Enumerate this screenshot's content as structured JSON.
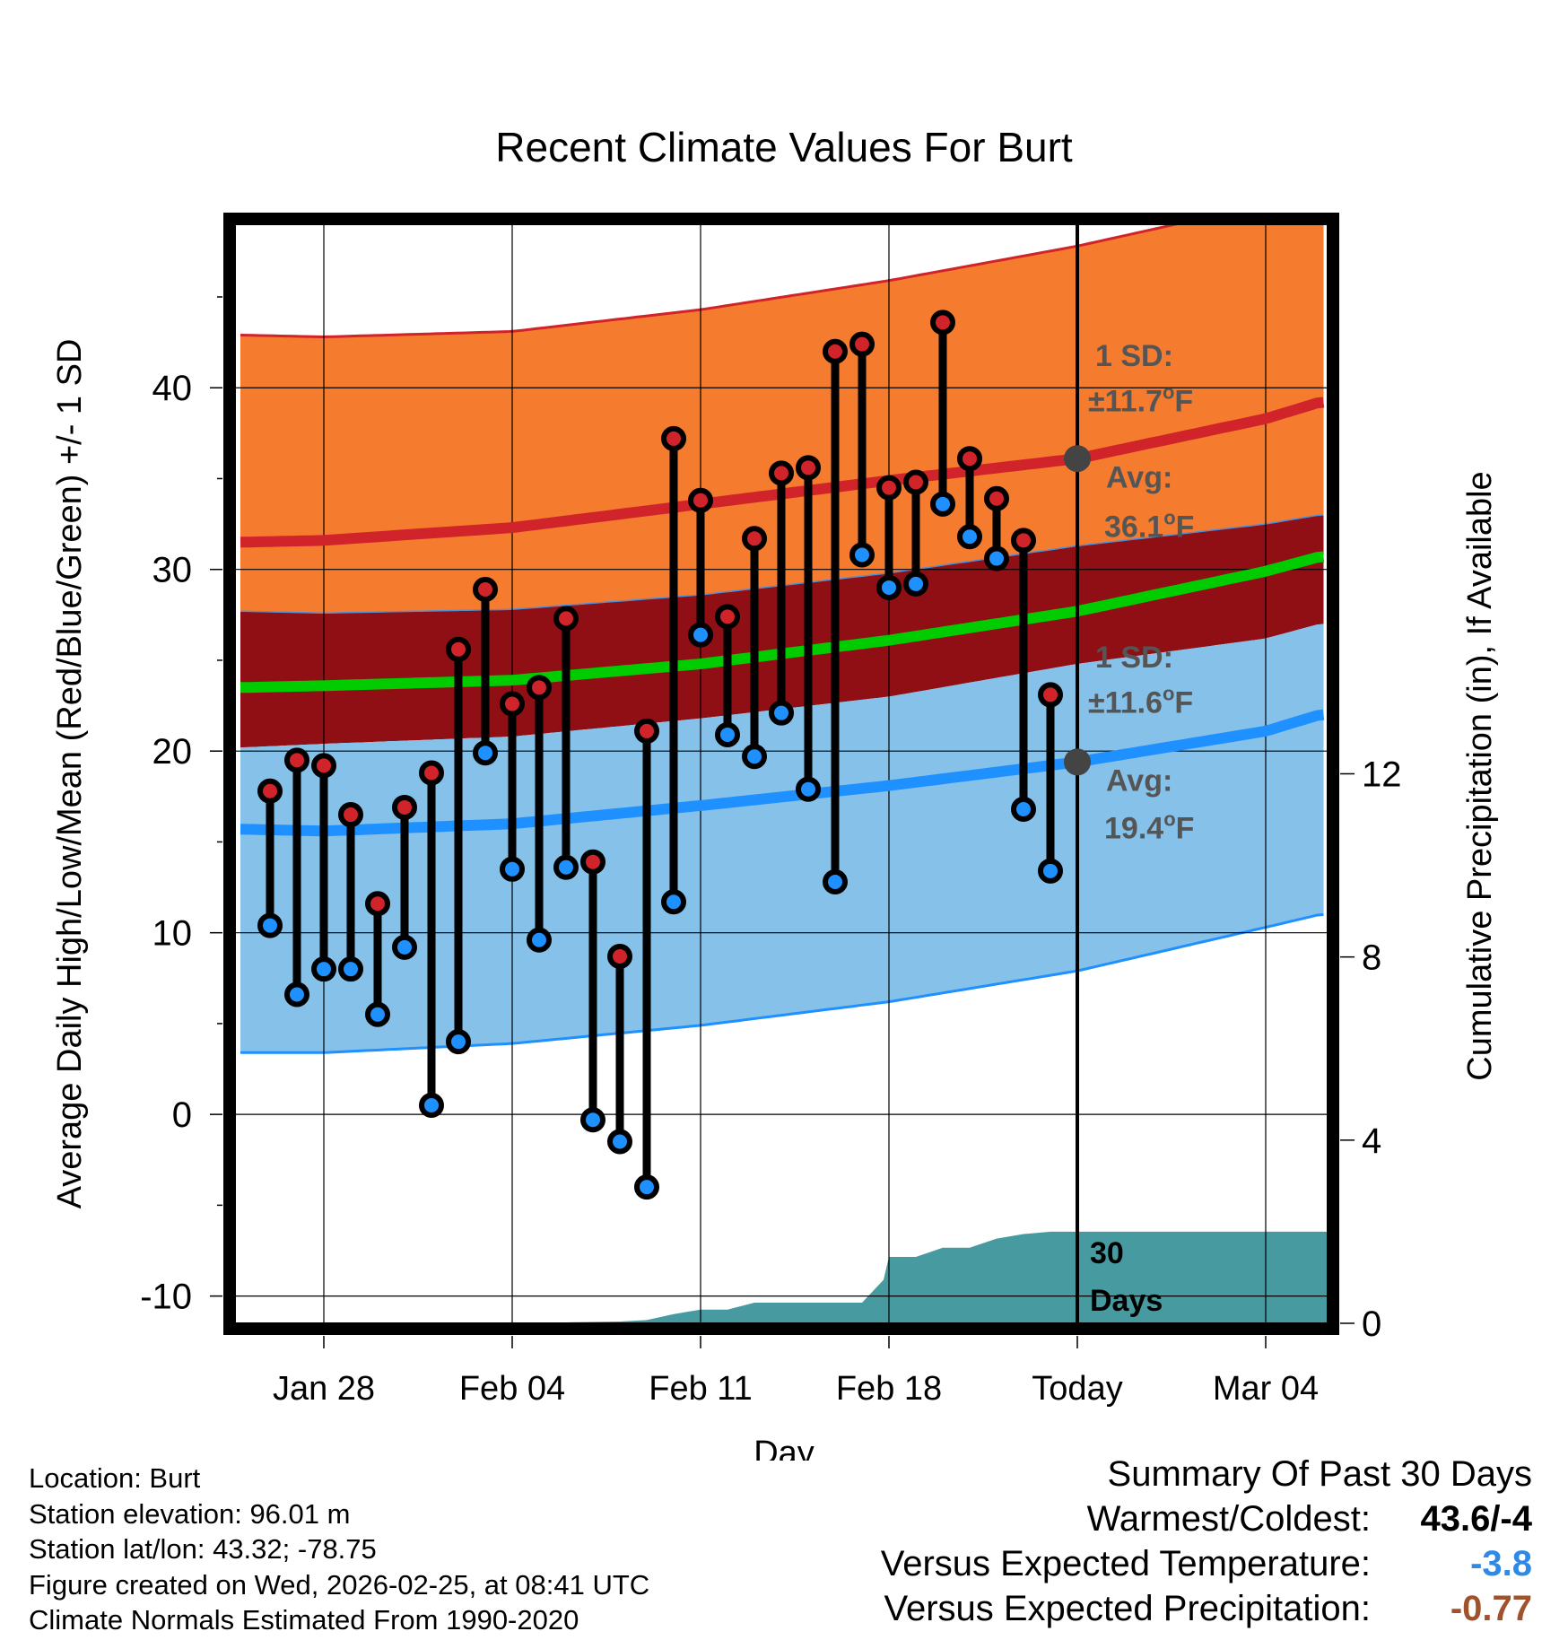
{
  "chart_data": {
    "type": "line",
    "title": "Recent Climate Values For Burt",
    "xlabel": "Day",
    "ylabel": "Average Daily High/Low/Mean (Red/Blue/Green) +/- 1 SD",
    "y2label": "Cumulative Precipitation (in), If Available",
    "ylim": [
      -11.5,
      49
    ],
    "y2lim": [
      0,
      24
    ],
    "xlim": [
      -3.3,
      37.3
    ],
    "yticks": [
      -10,
      0,
      10,
      20,
      30,
      40
    ],
    "y2ticks": [
      0,
      4,
      8,
      12
    ],
    "xticks": [
      {
        "day": 0,
        "label": "Jan 28"
      },
      {
        "day": 7,
        "label": "Feb 04"
      },
      {
        "day": 14,
        "label": "Feb 11"
      },
      {
        "day": 21,
        "label": "Feb 18"
      },
      {
        "day": 28,
        "label": "Today"
      },
      {
        "day": 35,
        "label": "Mar 04"
      }
    ],
    "today_day": 28,
    "colors": {
      "high_band": "#f57b2e",
      "high_line": "#d1232a",
      "mean_band": "#8f0f14",
      "mean_line": "#00cc00",
      "low_band": "#85c1e9",
      "low_line": "#1e90ff",
      "precip": "#479aa0",
      "high_point": "#d1232a",
      "low_point": "#1e90ff",
      "annotation": "#555555"
    },
    "normals": {
      "day": [
        -3,
        0,
        7,
        14,
        21,
        28,
        35,
        37
      ],
      "high_avg": [
        31.5,
        31.6,
        32.3,
        33.6,
        34.9,
        36.1,
        38.3,
        39.2
      ],
      "high_sd_upper": [
        42.9,
        42.8,
        43.1,
        44.3,
        45.9,
        47.8,
        50.1,
        50.9
      ],
      "mean_avg": [
        23.5,
        23.6,
        23.9,
        24.8,
        26.1,
        27.7,
        29.9,
        30.7
      ],
      "mean_sd_upper": [
        27.7,
        27.6,
        27.8,
        28.6,
        29.8,
        31.3,
        32.5,
        33.0
      ],
      "mean_sd_lower": [
        20.2,
        20.4,
        20.8,
        21.8,
        23.0,
        24.8,
        26.2,
        27.0
      ],
      "low_avg": [
        15.7,
        15.6,
        16.0,
        17.0,
        18.1,
        19.4,
        21.1,
        22.0
      ],
      "low_sd_lower": [
        3.4,
        3.4,
        3.9,
        4.9,
        6.2,
        7.9,
        10.3,
        11.0
      ]
    },
    "observations": {
      "day": [
        -2,
        -1,
        0,
        1,
        2,
        3,
        4,
        5,
        6,
        7,
        8,
        9,
        10,
        11,
        12,
        13,
        14,
        15,
        16,
        17,
        18,
        19,
        20,
        21,
        22,
        23,
        24,
        25,
        26,
        27
      ],
      "high": [
        17.8,
        19.5,
        19.2,
        16.5,
        11.6,
        16.9,
        18.8,
        25.6,
        28.9,
        22.6,
        23.5,
        27.3,
        13.9,
        8.7,
        21.1,
        37.2,
        33.8,
        27.4,
        31.7,
        35.3,
        35.6,
        42.0,
        42.4,
        34.5,
        34.8,
        43.6,
        36.1,
        33.9,
        31.6,
        23.1
      ],
      "low": [
        10.4,
        6.6,
        8.0,
        8.0,
        5.5,
        9.2,
        0.5,
        4.0,
        19.9,
        13.5,
        9.6,
        13.6,
        -0.3,
        -1.5,
        -4.0,
        11.7,
        26.4,
        20.9,
        19.7,
        22.1,
        17.9,
        12.8,
        30.8,
        29.0,
        29.2,
        33.6,
        31.8,
        30.6,
        16.8,
        13.4
      ]
    },
    "precip_cumulative": {
      "day": [
        -3,
        0,
        7,
        9,
        11,
        12,
        13,
        14,
        15,
        16,
        17,
        18,
        19,
        20,
        20.8,
        21,
        22,
        23,
        24,
        25,
        26,
        27,
        28,
        37.3
      ],
      "inches": [
        0,
        0,
        0,
        0.02,
        0.04,
        0.07,
        0.2,
        0.3,
        0.3,
        0.45,
        0.45,
        0.45,
        0.45,
        0.45,
        0.95,
        1.45,
        1.45,
        1.65,
        1.65,
        1.85,
        1.95,
        2.0,
        2.0,
        2.0
      ]
    },
    "annotations": {
      "high_sd_label": "1 SD:",
      "high_sd_value": "±11.7",
      "high_avg_label": "Avg:",
      "high_avg_value": "36.1",
      "low_sd_label": "1 SD:",
      "low_sd_value": "±11.6",
      "low_avg_label": "Avg:",
      "low_avg_value": "19.4",
      "degree_unit": "o",
      "fahrenheit_unit": "F",
      "days_count": "30",
      "days_label": "Days"
    }
  },
  "info": {
    "location": "Location: Burt",
    "elevation": "Station elevation: 96.01 m",
    "latlon": "Station lat/lon: 43.32; -78.75",
    "created": "Figure created on Wed, 2026-02-25, at 08:41 UTC",
    "normals": "Climate Normals Estimated From 1990-2020"
  },
  "summary": {
    "title": "Summary Of Past 30 Days",
    "warmest_coldest_label": "Warmest/Coldest:",
    "warmest_coldest_value": "43.6/-4",
    "temp_label": "Versus Expected Temperature:",
    "temp_value": "-3.8",
    "temp_color": "#2e8ae6",
    "precip_label": "Versus Expected Precipitation:",
    "precip_value": "-0.77",
    "precip_color": "#a0522d"
  }
}
